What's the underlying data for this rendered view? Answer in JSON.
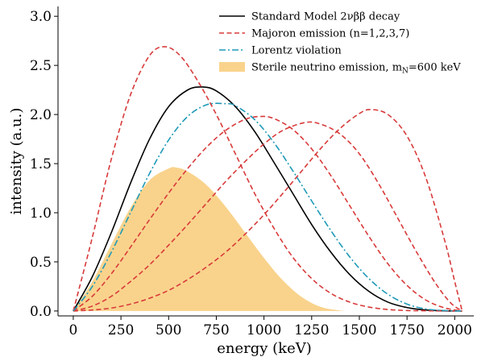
{
  "chart_data": {
    "type": "line",
    "xlabel": "energy (keV)",
    "ylabel": "intensity (a.u.)",
    "xlim": [
      -80,
      2100
    ],
    "ylim": [
      -0.05,
      3.1
    ],
    "xticks": [
      0,
      250,
      500,
      750,
      1000,
      1250,
      1500,
      1750,
      2000
    ],
    "xtick_labels": [
      "0",
      "250",
      "500",
      "750",
      "1000",
      "1250",
      "1500",
      "1750",
      "2000"
    ],
    "yticks": [
      0.0,
      0.5,
      1.0,
      1.5,
      2.0,
      2.5,
      3.0
    ],
    "ytick_labels": [
      "0.0",
      "0.5",
      "1.0",
      "1.5",
      "2.0",
      "2.5",
      "3.0"
    ],
    "grid": false,
    "legend_position": "top-right",
    "series": [
      {
        "name": "Standard Model 2νββ decay",
        "style": "solid",
        "color": "#000000",
        "x": [
          0,
          100,
          200,
          300,
          400,
          500,
          600,
          680,
          750,
          850,
          950,
          1050,
          1150,
          1250,
          1350,
          1450,
          1550,
          1650,
          1750,
          1850,
          1950,
          2039
        ],
        "y": [
          0.0,
          0.35,
          0.8,
          1.3,
          1.75,
          2.08,
          2.25,
          2.28,
          2.24,
          2.08,
          1.83,
          1.52,
          1.2,
          0.88,
          0.6,
          0.37,
          0.2,
          0.09,
          0.035,
          0.01,
          0.002,
          0.0
        ]
      },
      {
        "name": "Majoron emission (n=1,2,3,7)",
        "style": "dashed",
        "color": "#d83a3a",
        "x": [
          0,
          100,
          200,
          300,
          400,
          480,
          560,
          650,
          750,
          850,
          950,
          1050,
          1150,
          1250,
          1350,
          1450,
          1550,
          1650,
          1750,
          1850,
          1950,
          2039
        ],
        "y": [
          0.0,
          0.75,
          1.55,
          2.2,
          2.6,
          2.69,
          2.6,
          2.35,
          2.0,
          1.6,
          1.2,
          0.85,
          0.55,
          0.33,
          0.18,
          0.09,
          0.04,
          0.015,
          0.005,
          0.002,
          0.0,
          0.0
        ]
      },
      {
        "name": "",
        "style": "dashed",
        "color": "#d83a3a",
        "x": [
          0,
          100,
          200,
          300,
          400,
          500,
          600,
          700,
          800,
          900,
          980,
          1050,
          1150,
          1250,
          1350,
          1450,
          1550,
          1650,
          1750,
          1850,
          1950,
          2039
        ],
        "y": [
          0.0,
          0.15,
          0.38,
          0.65,
          0.93,
          1.2,
          1.45,
          1.67,
          1.84,
          1.95,
          1.98,
          1.96,
          1.85,
          1.65,
          1.38,
          1.07,
          0.76,
          0.48,
          0.26,
          0.11,
          0.03,
          0.0
        ]
      },
      {
        "name": "",
        "style": "dashed",
        "color": "#d83a3a",
        "x": [
          0,
          100,
          200,
          300,
          400,
          500,
          600,
          700,
          800,
          900,
          1000,
          1100,
          1220,
          1300,
          1400,
          1500,
          1600,
          1700,
          1800,
          1900,
          1980,
          2039
        ],
        "y": [
          0.0,
          0.05,
          0.15,
          0.3,
          0.47,
          0.67,
          0.88,
          1.1,
          1.32,
          1.52,
          1.7,
          1.84,
          1.92,
          1.9,
          1.8,
          1.6,
          1.3,
          0.95,
          0.6,
          0.28,
          0.08,
          0.0
        ]
      },
      {
        "name": "",
        "style": "dashed",
        "color": "#d83a3a",
        "x": [
          0,
          100,
          200,
          300,
          400,
          500,
          600,
          700,
          800,
          900,
          1000,
          1100,
          1200,
          1300,
          1400,
          1500,
          1560,
          1650,
          1750,
          1850,
          1950,
          2000,
          2039
        ],
        "y": [
          0.0,
          0.01,
          0.03,
          0.07,
          0.13,
          0.21,
          0.32,
          0.45,
          0.6,
          0.78,
          0.98,
          1.2,
          1.43,
          1.66,
          1.86,
          2.01,
          2.05,
          2.0,
          1.78,
          1.35,
          0.7,
          0.3,
          0.0
        ]
      },
      {
        "name": "Lorentz violation",
        "style": "dashdot",
        "color": "#1f9ab8",
        "x": [
          0,
          100,
          200,
          300,
          400,
          500,
          600,
          700,
          800,
          850,
          950,
          1050,
          1150,
          1250,
          1350,
          1450,
          1550,
          1650,
          1750,
          1850,
          1950,
          2039
        ],
        "y": [
          0.0,
          0.25,
          0.6,
          1.0,
          1.4,
          1.74,
          1.98,
          2.1,
          2.11,
          2.09,
          1.95,
          1.72,
          1.43,
          1.12,
          0.82,
          0.55,
          0.33,
          0.17,
          0.07,
          0.02,
          0.004,
          0.0
        ]
      },
      {
        "name": "Sterile neutrino emission, m",
        "name_subscript": "N",
        "name_suffix": "=600 keV",
        "style": "fill",
        "color": "#f9d38c",
        "x": [
          0,
          100,
          200,
          300,
          400,
          500,
          540,
          600,
          700,
          800,
          900,
          1000,
          1100,
          1200,
          1300,
          1400,
          1440
        ],
        "y": [
          0.0,
          0.3,
          0.68,
          1.05,
          1.33,
          1.45,
          1.46,
          1.42,
          1.28,
          1.06,
          0.8,
          0.54,
          0.31,
          0.14,
          0.04,
          0.005,
          0.0
        ]
      }
    ]
  }
}
